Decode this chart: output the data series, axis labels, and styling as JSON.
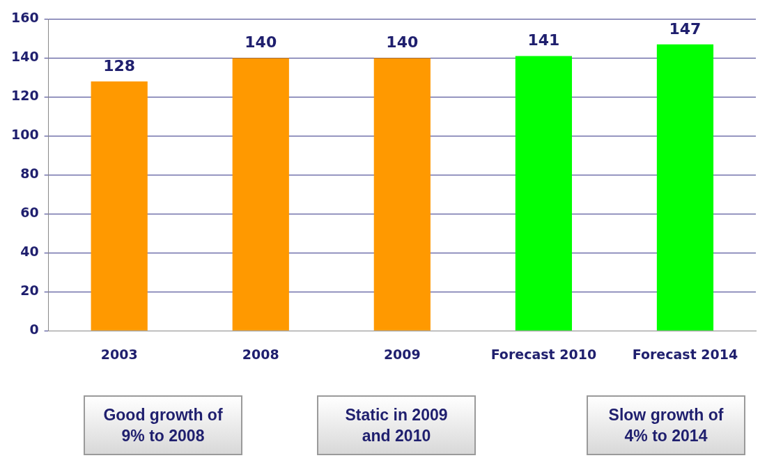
{
  "chart_data": {
    "type": "bar",
    "categories": [
      "2003",
      "2008",
      "2009",
      "Forecast 2010",
      "Forecast 2014"
    ],
    "values": [
      128,
      140,
      140,
      141,
      147
    ],
    "colors": [
      "#ff9900",
      "#ff9900",
      "#ff9900",
      "#00ff00",
      "#00ff00"
    ],
    "ylim": [
      0,
      160
    ],
    "yticks": [
      0,
      20,
      40,
      60,
      80,
      100,
      120,
      140,
      160
    ],
    "grid": "y",
    "data_labels": true,
    "legend": false,
    "annotations": [
      "Good growth of 9% to 2008",
      "Static in 2009 and 2010",
      "Slow growth of 4% to 2014"
    ]
  }
}
